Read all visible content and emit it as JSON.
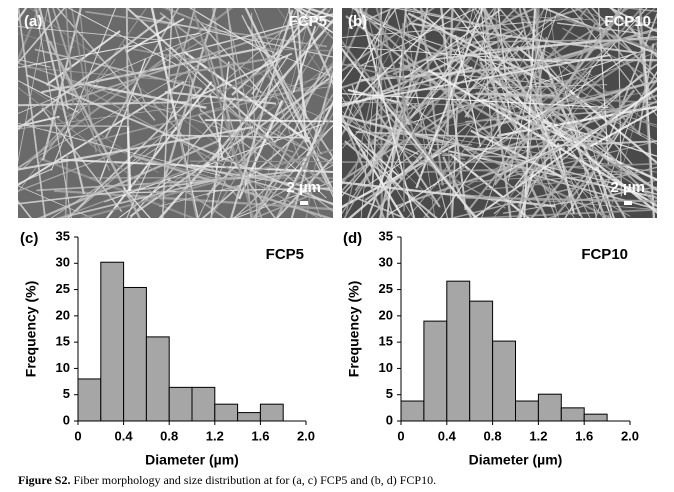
{
  "images": [
    {
      "label": "(a)",
      "sample": "FCP5",
      "scale_bar": "2 µm"
    },
    {
      "label": "(b)",
      "sample": "FCP10",
      "scale_bar": "2 µm"
    }
  ],
  "chart_data": [
    {
      "type": "histogram",
      "label": "(c)",
      "title": "FCP5",
      "x_label": "Diameter (µm)",
      "y_label": "Frequency (%)",
      "bins": [
        0,
        0.2,
        0.4,
        0.6,
        0.8,
        1.0,
        1.2,
        1.4,
        1.6,
        1.8,
        2.0
      ],
      "values": [
        8,
        30.2,
        25.4,
        16,
        6.4,
        6.4,
        3.2,
        1.6,
        3.2,
        0
      ],
      "color": "#a6a6a6",
      "xlim": [
        0,
        2.0
      ],
      "ylim": [
        0,
        35
      ],
      "xticks": [
        0,
        0.4,
        0.8,
        1.2,
        1.6,
        {
          "value": 2,
          "label": "2.0"
        }
      ],
      "yticks": [
        0,
        5,
        10,
        15,
        20,
        25,
        30,
        35
      ],
      "grid": false
    },
    {
      "type": "histogram",
      "label": "(d)",
      "title": "FCP10",
      "x_label": "Diameter (µm)",
      "y_label": "Frequency (%)",
      "bins": [
        0,
        0.2,
        0.4,
        0.6,
        0.8,
        1.0,
        1.2,
        1.4,
        1.6,
        1.8,
        2.0
      ],
      "values": [
        3.8,
        19,
        26.6,
        22.8,
        15.2,
        3.8,
        5.1,
        2.5,
        1.3,
        0
      ],
      "color": "#a6a6a6",
      "xlim": [
        0,
        2.0
      ],
      "ylim": [
        0,
        35
      ],
      "xticks": [
        0,
        0.4,
        0.8,
        1.2,
        1.6,
        {
          "value": 2,
          "label": "2.0"
        }
      ],
      "yticks": [
        0,
        5,
        10,
        15,
        20,
        25,
        30,
        35
      ],
      "grid": false
    }
  ],
  "caption": {
    "label": "Figure S2.",
    "text": " Fiber morphology and size distribution at for (a, c) FCP5 and (b, d) FCP10."
  }
}
